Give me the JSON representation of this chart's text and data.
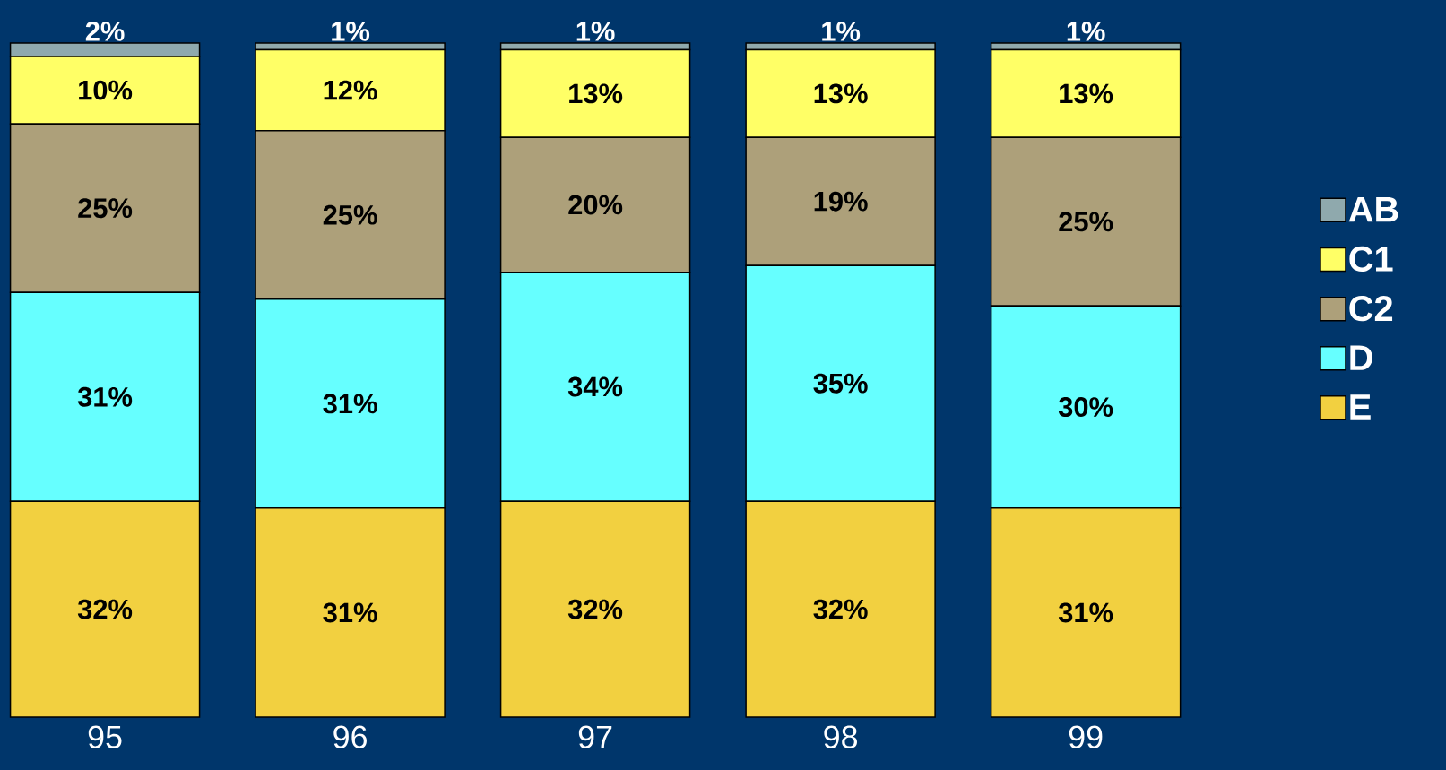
{
  "chart_data": {
    "type": "bar",
    "stacked": true,
    "categories": [
      "95",
      "96",
      "97",
      "98",
      "99"
    ],
    "ylim": [
      0,
      100
    ],
    "legend": "right",
    "series": [
      {
        "name": "E",
        "color": "#f2d040",
        "values": [
          32,
          31,
          32,
          32,
          31
        ],
        "value_labels": [
          "32%",
          "31%",
          "32%",
          "32%",
          "31%"
        ]
      },
      {
        "name": "D",
        "color": "#66ffff",
        "values": [
          31,
          31,
          34,
          35,
          30
        ],
        "value_labels": [
          "31%",
          "31%",
          "34%",
          "35%",
          "30%"
        ]
      },
      {
        "name": "C2",
        "color": "#ada07a",
        "values": [
          25,
          25,
          20,
          19,
          25
        ],
        "value_labels": [
          "25%",
          "25%",
          "20%",
          "19%",
          "25%"
        ]
      },
      {
        "name": "C1",
        "color": "#ffff66",
        "values": [
          10,
          12,
          13,
          13,
          13
        ],
        "value_labels": [
          "10%",
          "12%",
          "13%",
          "13%",
          "13%"
        ]
      },
      {
        "name": "AB",
        "color": "#8fa9ad",
        "values": [
          2,
          1,
          1,
          1,
          1
        ],
        "value_labels": [
          "2%",
          "1%",
          "1%",
          "1%",
          "1%"
        ]
      }
    ]
  }
}
